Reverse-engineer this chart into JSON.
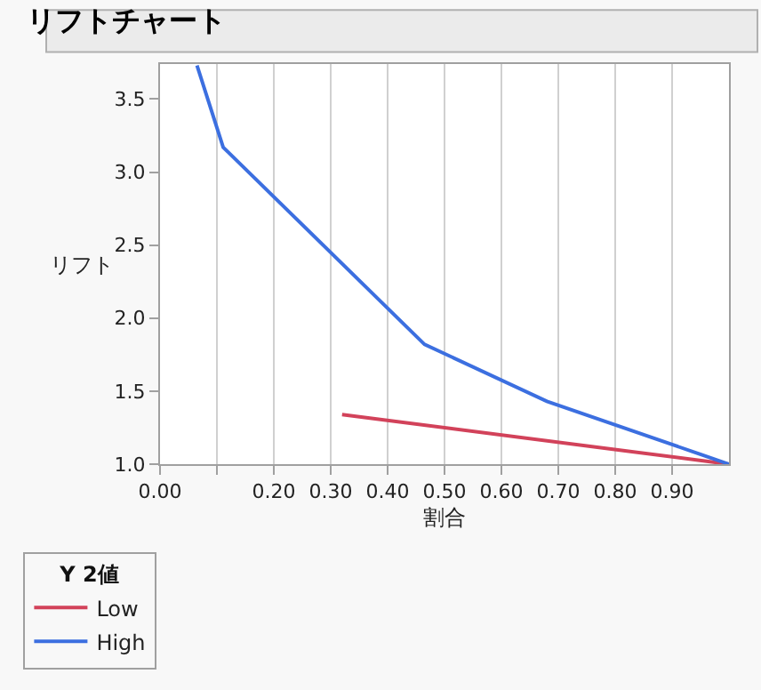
{
  "chart_data": {
    "type": "line",
    "title": "リフトチャート",
    "xlabel": "割合",
    "ylabel": "リフト",
    "legend_title": "Y 2値",
    "xlim": [
      0,
      1.0
    ],
    "xticks": [
      {
        "value": 0,
        "label": "0.00"
      },
      {
        "value": 0.1,
        "label": null
      },
      {
        "value": 0.2,
        "label": "0.20"
      },
      {
        "value": 0.3,
        "label": "0.30"
      },
      {
        "value": 0.4,
        "label": "0.40"
      },
      {
        "value": 0.5,
        "label": "0.50"
      },
      {
        "value": 0.6,
        "label": "0.60"
      },
      {
        "value": 0.7,
        "label": "0.70"
      },
      {
        "value": 0.8,
        "label": "0.80"
      },
      {
        "value": 0.9,
        "label": "0.90"
      }
    ],
    "ylim": [
      1.0,
      3.74
    ],
    "yticks": [
      {
        "value": 1.0,
        "label": "1.0"
      },
      {
        "value": 1.5,
        "label": "1.5"
      },
      {
        "value": 2.0,
        "label": "2.0"
      },
      {
        "value": 2.5,
        "label": "2.5"
      },
      {
        "value": 3.0,
        "label": "3.0"
      },
      {
        "value": 3.5,
        "label": "3.5"
      }
    ],
    "series": [
      {
        "name": "Low",
        "color": "#d2425a",
        "x": [
          0.32,
          1.0
        ],
        "values": [
          1.34,
          1.0
        ]
      },
      {
        "name": "High",
        "color": "#3c6fe0",
        "x": [
          0.065,
          0.111,
          0.465,
          0.68,
          1.0
        ],
        "values": [
          3.73,
          3.17,
          1.82,
          1.43,
          1.0
        ]
      }
    ],
    "grid": "x",
    "legend": "bottom left",
    "marker": "none",
    "line_style": "solid"
  }
}
